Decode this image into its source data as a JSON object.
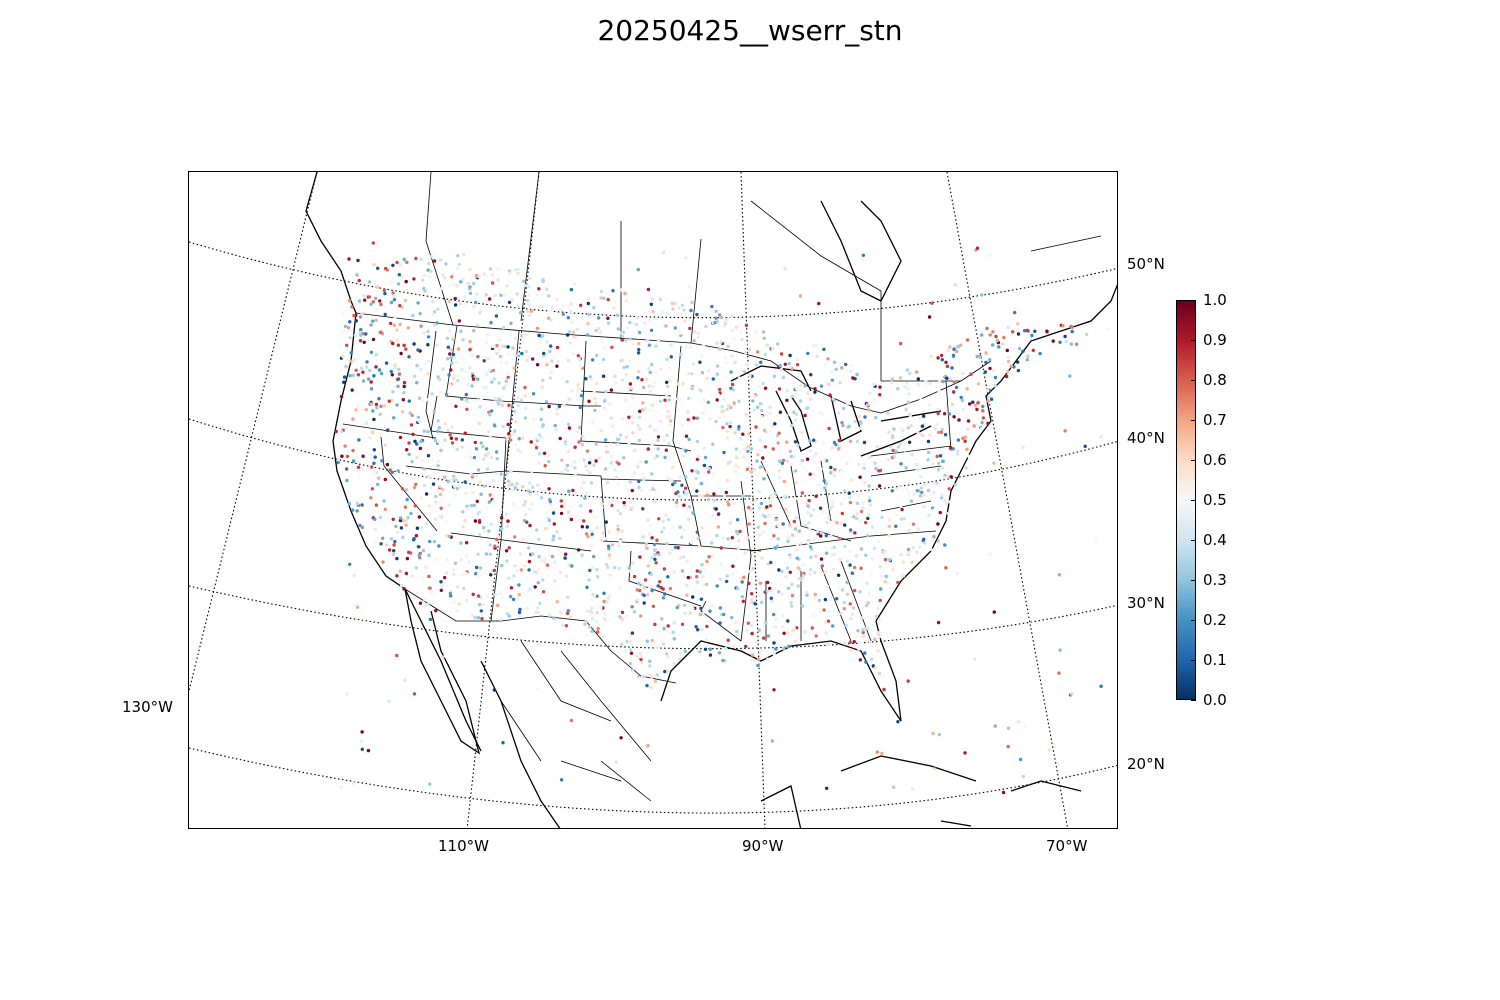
{
  "title": "20250425__wserr_stn",
  "lon_labels": [
    "130°W",
    "110°W",
    "90°W",
    "70°W"
  ],
  "lat_labels": [
    "20°N",
    "30°N",
    "40°N",
    "50°N"
  ],
  "colorbar": {
    "ticks": [
      "0.0",
      "0.1",
      "0.2",
      "0.3",
      "0.4",
      "0.5",
      "0.6",
      "0.7",
      "0.8",
      "0.9",
      "1.0"
    ],
    "colormap": "RdBu_r",
    "colors": [
      "#053061",
      "#2166ac",
      "#4393c3",
      "#92c5de",
      "#d1e5f0",
      "#f7f7f7",
      "#fddbc7",
      "#f4a582",
      "#d6604d",
      "#b2182b",
      "#67001f"
    ]
  },
  "map": {
    "projection": "Lambert conformal conic",
    "region": "Continental United States",
    "graticule": "dotted",
    "marker": "station point colored by value"
  }
}
